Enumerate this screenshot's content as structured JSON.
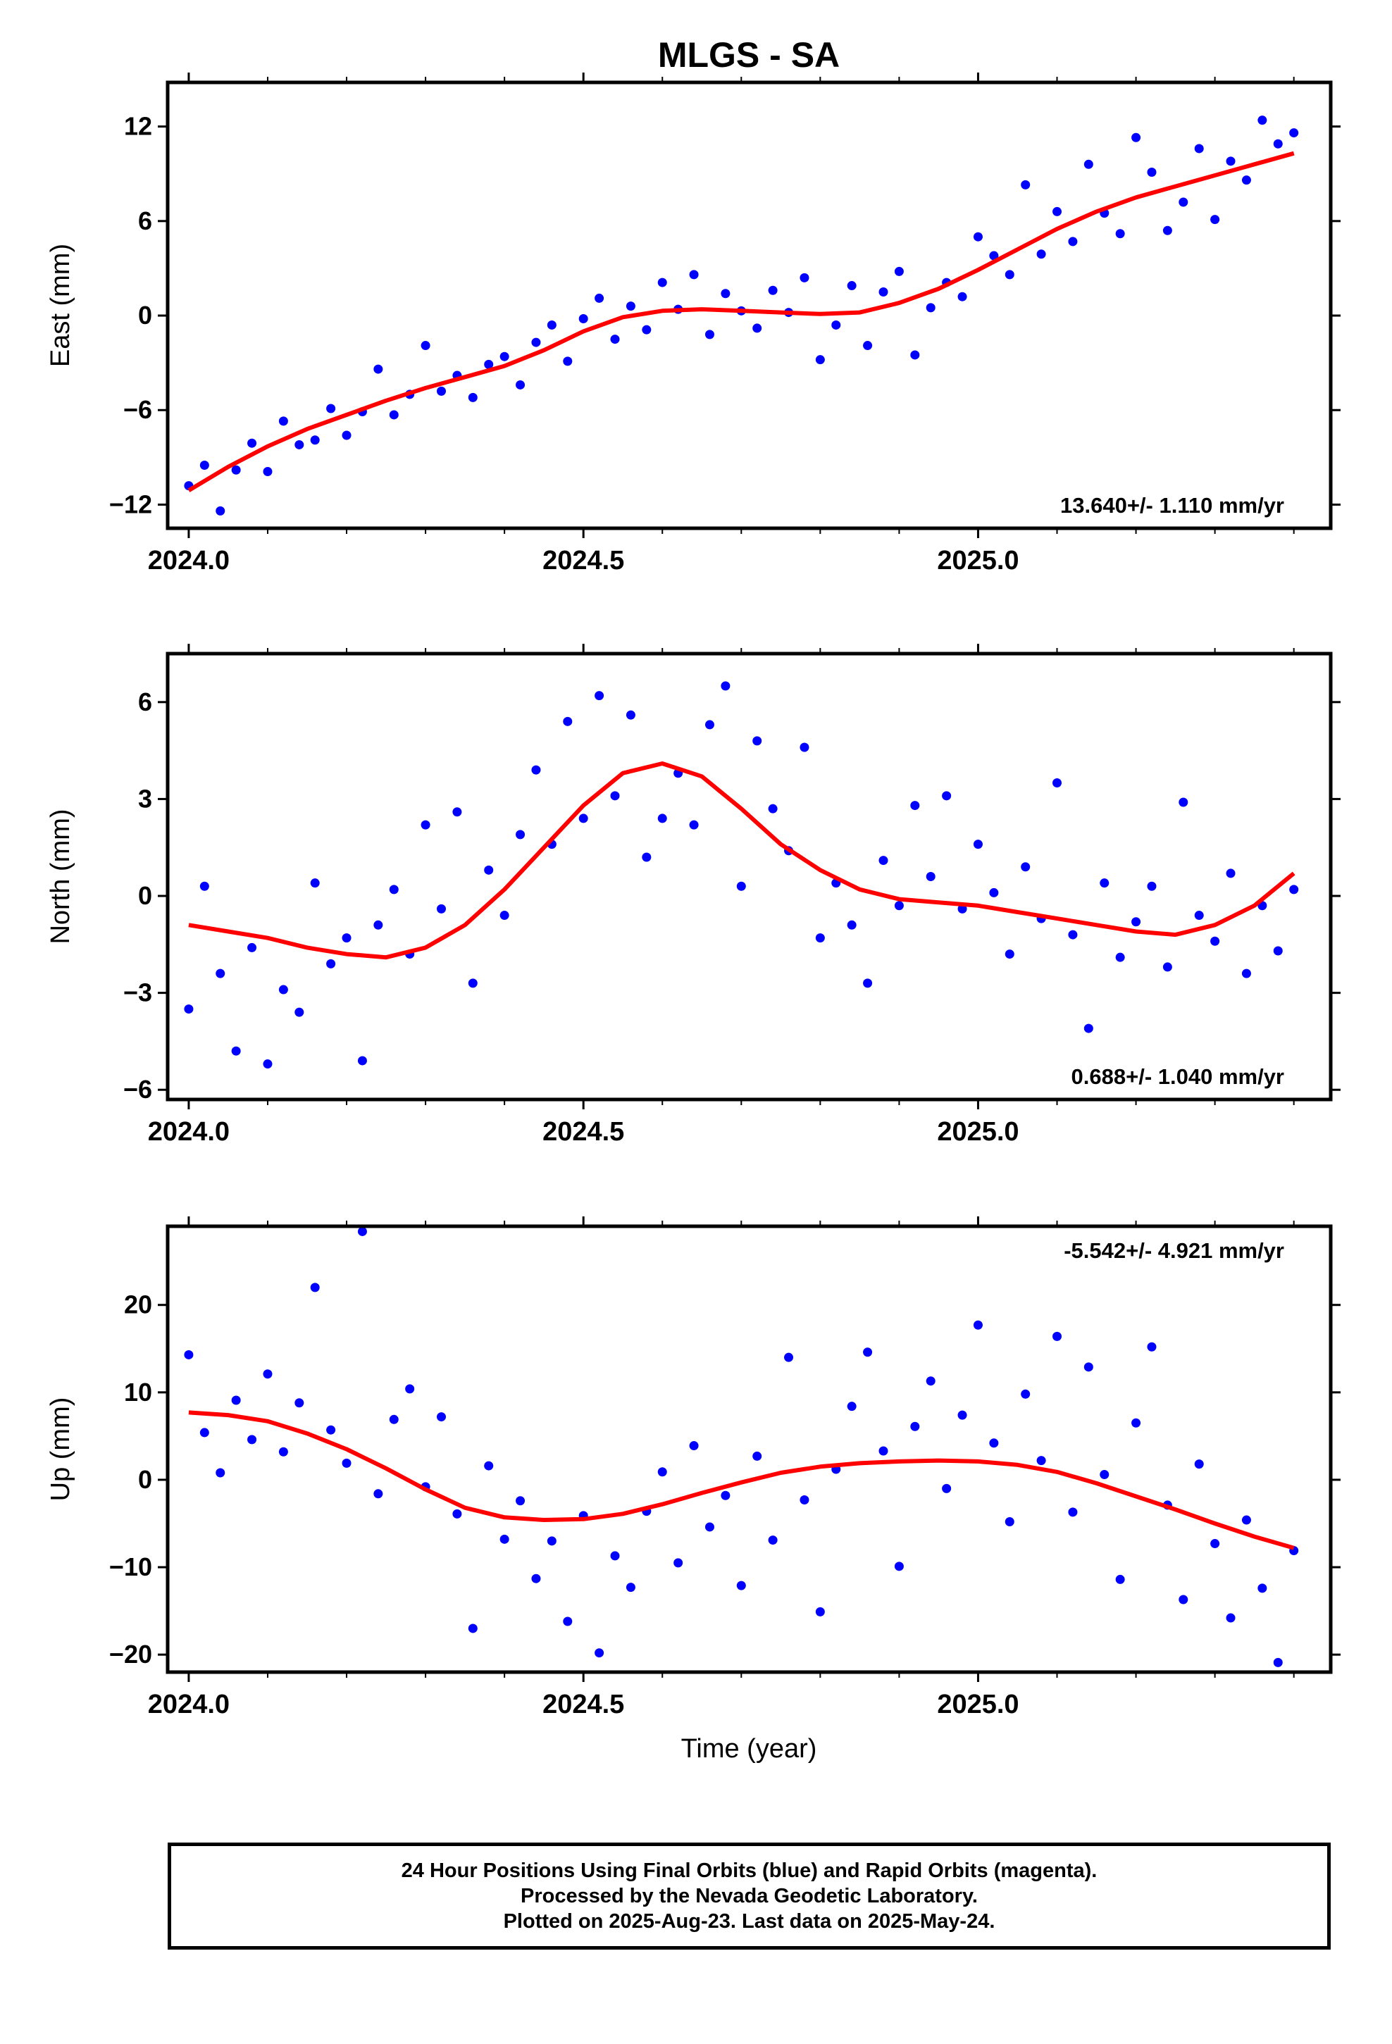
{
  "page": {
    "title": "MLGS - SA",
    "xlabel": "Time (year)"
  },
  "footer": {
    "line1": "24 Hour Positions Using Final Orbits (blue) and Rapid Orbits (magenta).",
    "line2": "Processed by the Nevada Geodetic Laboratory.",
    "line3": "Plotted on 2025-Aug-23. Last data on 2025-May-24."
  },
  "colors": {
    "data": "#0000ff",
    "fit": "#ff0000",
    "frame": "#000000"
  },
  "chart_data": [
    {
      "type": "scatter",
      "component": "east",
      "ylabel": "East (mm)",
      "rate_label": "13.640+/- 1.110 mm/yr",
      "rate_position": "bottom-right",
      "xlim": [
        1.9733,
        3.4467
      ],
      "ylim": [
        -13.5,
        14.8
      ],
      "xticks": [
        2.0,
        2.5,
        3.0
      ],
      "xticklabels": [
        "2024.0",
        "2024.5",
        "2025.0"
      ],
      "yticks": [
        -12,
        -6,
        0,
        6,
        12
      ],
      "yticklabels": [
        "−12",
        "−6",
        "0",
        "6",
        "12"
      ],
      "grid": false,
      "series": [
        {
          "style": "points",
          "x": [
            2.0,
            2.02,
            2.04,
            2.06,
            2.08,
            2.1,
            2.12,
            2.14,
            2.16,
            2.18,
            2.2,
            2.22,
            2.24,
            2.26,
            2.28,
            2.3,
            2.32,
            2.34,
            2.36,
            2.38,
            2.4,
            2.42,
            2.44,
            2.46,
            2.48,
            2.5,
            2.52,
            2.54,
            2.56,
            2.58,
            2.6,
            2.62,
            2.64,
            2.66,
            2.68,
            2.7,
            2.72,
            2.74,
            2.76,
            2.78,
            2.8,
            2.82,
            2.84,
            2.86,
            2.88,
            2.9,
            2.92,
            2.94,
            2.96,
            2.98,
            3.0,
            3.02,
            3.04,
            3.06,
            3.08,
            3.1,
            3.12,
            3.14,
            3.16,
            3.18,
            3.2,
            3.22,
            3.24,
            3.26,
            3.28,
            3.3,
            3.32,
            3.34,
            3.36,
            3.38,
            3.4
          ],
          "y": [
            -10.8,
            -9.5,
            -12.4,
            -9.8,
            -8.1,
            -9.9,
            -6.7,
            -8.2,
            -7.9,
            -5.9,
            -7.6,
            -6.1,
            -3.4,
            -6.3,
            -5.0,
            -1.9,
            -4.8,
            -3.8,
            -5.2,
            -3.1,
            -2.6,
            -4.4,
            -1.7,
            -0.6,
            -2.9,
            -0.2,
            1.1,
            -1.5,
            0.6,
            -0.9,
            2.1,
            0.4,
            2.6,
            -1.2,
            1.4,
            0.3,
            -0.8,
            1.6,
            0.2,
            2.4,
            -2.8,
            -0.6,
            1.9,
            -1.9,
            1.5,
            2.8,
            -2.5,
            0.5,
            2.1,
            1.2,
            5.0,
            3.8,
            2.6,
            8.3,
            3.9,
            6.6,
            4.7,
            9.6,
            6.5,
            5.2,
            11.3,
            9.1,
            5.4,
            7.2,
            10.6,
            6.1,
            9.8,
            8.6,
            12.4,
            10.9,
            11.6
          ]
        },
        {
          "style": "line",
          "x": [
            2.0,
            2.05,
            2.1,
            2.15,
            2.2,
            2.25,
            2.3,
            2.35,
            2.4,
            2.45,
            2.5,
            2.55,
            2.6,
            2.65,
            2.7,
            2.75,
            2.8,
            2.85,
            2.9,
            2.95,
            3.0,
            3.05,
            3.1,
            3.15,
            3.2,
            3.25,
            3.3,
            3.35,
            3.4
          ],
          "y": [
            -11.1,
            -9.6,
            -8.3,
            -7.2,
            -6.3,
            -5.4,
            -4.6,
            -3.9,
            -3.2,
            -2.2,
            -1.0,
            -0.1,
            0.3,
            0.4,
            0.3,
            0.2,
            0.1,
            0.2,
            0.8,
            1.7,
            2.9,
            4.2,
            5.5,
            6.6,
            7.5,
            8.2,
            8.9,
            9.6,
            10.3
          ]
        }
      ]
    },
    {
      "type": "scatter",
      "component": "north",
      "ylabel": "North (mm)",
      "rate_label": "0.688+/- 1.040 mm/yr",
      "rate_position": "bottom-right",
      "xlim": [
        1.9733,
        3.4467
      ],
      "ylim": [
        -6.3,
        7.5
      ],
      "xticks": [
        2.0,
        2.5,
        3.0
      ],
      "xticklabels": [
        "2024.0",
        "2024.5",
        "2025.0"
      ],
      "yticks": [
        -6,
        -3,
        0,
        3,
        6
      ],
      "yticklabels": [
        "−6",
        "−3",
        "0",
        "3",
        "6"
      ],
      "grid": false,
      "series": [
        {
          "style": "points",
          "x": [
            2.0,
            2.02,
            2.04,
            2.06,
            2.08,
            2.1,
            2.12,
            2.14,
            2.16,
            2.18,
            2.2,
            2.22,
            2.24,
            2.26,
            2.28,
            2.3,
            2.32,
            2.34,
            2.36,
            2.38,
            2.4,
            2.42,
            2.44,
            2.46,
            2.48,
            2.5,
            2.52,
            2.54,
            2.56,
            2.58,
            2.6,
            2.62,
            2.64,
            2.66,
            2.68,
            2.7,
            2.72,
            2.74,
            2.76,
            2.78,
            2.8,
            2.82,
            2.84,
            2.86,
            2.88,
            2.9,
            2.92,
            2.94,
            2.96,
            2.98,
            3.0,
            3.02,
            3.04,
            3.06,
            3.08,
            3.1,
            3.12,
            3.14,
            3.16,
            3.18,
            3.2,
            3.22,
            3.24,
            3.26,
            3.28,
            3.3,
            3.32,
            3.34,
            3.36,
            3.38,
            3.4
          ],
          "y": [
            -3.5,
            0.3,
            -2.4,
            -4.8,
            -1.6,
            -5.2,
            -2.9,
            -3.6,
            0.4,
            -2.1,
            -1.3,
            -5.1,
            -0.9,
            0.2,
            -1.8,
            2.2,
            -0.4,
            2.6,
            -2.7,
            0.8,
            -0.6,
            1.9,
            3.9,
            1.6,
            5.4,
            2.4,
            6.2,
            3.1,
            5.6,
            1.2,
            2.4,
            3.8,
            2.2,
            5.3,
            6.5,
            0.3,
            4.8,
            2.7,
            1.4,
            4.6,
            -1.3,
            0.4,
            -0.9,
            -2.7,
            1.1,
            -0.3,
            2.8,
            0.6,
            3.1,
            -0.4,
            1.6,
            0.1,
            -1.8,
            0.9,
            -0.7,
            3.5,
            -1.2,
            -4.1,
            0.4,
            -1.9,
            -0.8,
            0.3,
            -2.2,
            2.9,
            -0.6,
            -1.4,
            0.7,
            -2.4,
            -0.3,
            -1.7,
            0.2
          ]
        },
        {
          "style": "line",
          "x": [
            2.0,
            2.05,
            2.1,
            2.15,
            2.2,
            2.25,
            2.3,
            2.35,
            2.4,
            2.45,
            2.5,
            2.55,
            2.6,
            2.65,
            2.7,
            2.75,
            2.8,
            2.85,
            2.9,
            2.95,
            3.0,
            3.05,
            3.1,
            3.15,
            3.2,
            3.25,
            3.3,
            3.35,
            3.4
          ],
          "y": [
            -0.9,
            -1.1,
            -1.3,
            -1.6,
            -1.8,
            -1.9,
            -1.6,
            -0.9,
            0.2,
            1.5,
            2.8,
            3.8,
            4.1,
            3.7,
            2.7,
            1.6,
            0.8,
            0.2,
            -0.1,
            -0.2,
            -0.3,
            -0.5,
            -0.7,
            -0.9,
            -1.1,
            -1.2,
            -0.9,
            -0.3,
            0.7
          ]
        }
      ]
    },
    {
      "type": "scatter",
      "component": "up",
      "ylabel": "Up (mm)",
      "rate_label": "-5.542+/- 4.921 mm/yr",
      "rate_position": "top-right",
      "xlim": [
        1.9733,
        3.4467
      ],
      "ylim": [
        -22,
        29
      ],
      "xticks": [
        2.0,
        2.5,
        3.0
      ],
      "xticklabels": [
        "2024.0",
        "2024.5",
        "2025.0"
      ],
      "yticks": [
        -20,
        -10,
        0,
        10,
        20
      ],
      "yticklabels": [
        "−20",
        "−10",
        "0",
        "10",
        "20"
      ],
      "grid": false,
      "series": [
        {
          "style": "points",
          "x": [
            2.0,
            2.02,
            2.04,
            2.06,
            2.08,
            2.1,
            2.12,
            2.14,
            2.16,
            2.18,
            2.2,
            2.22,
            2.24,
            2.26,
            2.28,
            2.3,
            2.32,
            2.34,
            2.36,
            2.38,
            2.4,
            2.42,
            2.44,
            2.46,
            2.48,
            2.5,
            2.52,
            2.54,
            2.56,
            2.58,
            2.6,
            2.62,
            2.64,
            2.66,
            2.68,
            2.7,
            2.72,
            2.74,
            2.76,
            2.78,
            2.8,
            2.82,
            2.84,
            2.86,
            2.88,
            2.9,
            2.92,
            2.94,
            2.96,
            2.98,
            3.0,
            3.02,
            3.04,
            3.06,
            3.08,
            3.1,
            3.12,
            3.14,
            3.16,
            3.18,
            3.2,
            3.22,
            3.24,
            3.26,
            3.28,
            3.3,
            3.32,
            3.34,
            3.36,
            3.38,
            3.4
          ],
          "y": [
            14.3,
            5.4,
            0.8,
            9.1,
            4.6,
            12.1,
            3.2,
            8.8,
            22.0,
            5.7,
            1.9,
            28.4,
            -1.6,
            6.9,
            10.4,
            -0.8,
            7.2,
            -3.9,
            -17.0,
            1.6,
            -6.8,
            -2.4,
            -11.3,
            -7.0,
            -16.2,
            -4.1,
            -19.8,
            -8.7,
            -12.3,
            -3.6,
            0.9,
            -9.5,
            3.9,
            -5.4,
            -1.8,
            -12.1,
            2.7,
            -6.9,
            14.0,
            -2.3,
            -15.1,
            1.2,
            8.4,
            14.6,
            3.3,
            -9.9,
            6.1,
            11.3,
            -1.0,
            7.4,
            17.7,
            4.2,
            -4.8,
            9.8,
            2.2,
            16.4,
            -3.7,
            12.9,
            0.6,
            -11.4,
            6.5,
            15.2,
            -2.9,
            -13.7,
            1.8,
            -7.3,
            -15.8,
            -4.6,
            -12.4,
            -20.9,
            -8.1
          ]
        },
        {
          "style": "line",
          "x": [
            2.0,
            2.05,
            2.1,
            2.15,
            2.2,
            2.25,
            2.3,
            2.35,
            2.4,
            2.45,
            2.5,
            2.55,
            2.6,
            2.65,
            2.7,
            2.75,
            2.8,
            2.85,
            2.9,
            2.95,
            3.0,
            3.05,
            3.1,
            3.15,
            3.2,
            3.25,
            3.3,
            3.35,
            3.4
          ],
          "y": [
            7.7,
            7.4,
            6.7,
            5.3,
            3.5,
            1.3,
            -1.1,
            -3.2,
            -4.3,
            -4.6,
            -4.5,
            -3.9,
            -2.8,
            -1.5,
            -0.3,
            0.8,
            1.5,
            1.9,
            2.1,
            2.2,
            2.1,
            1.7,
            0.9,
            -0.4,
            -1.9,
            -3.4,
            -5.0,
            -6.5,
            -7.8
          ]
        }
      ]
    }
  ]
}
